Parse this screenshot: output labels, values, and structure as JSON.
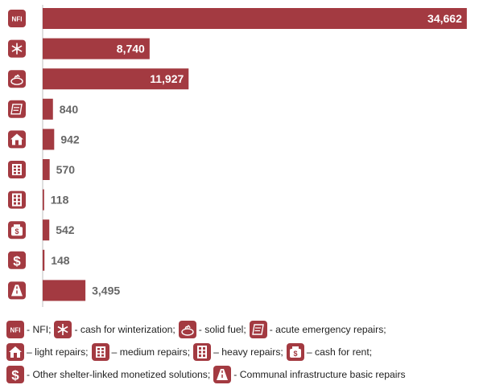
{
  "chart_data": {
    "type": "bar",
    "orientation": "horizontal",
    "categories": [
      "NFI",
      "cash for winterization",
      "solid fuel",
      "acute emergency repairs",
      "light repairs",
      "medium repairs",
      "heavy repairs",
      "cash for rent",
      "Other shelter-linked monetized solutions",
      "Communal infrastructure basic repairs"
    ],
    "icons": [
      "nfi-icon",
      "snowflake-icon",
      "fuel-icon",
      "emergency-repair-icon",
      "house-icon",
      "medium-building-icon",
      "heavy-building-icon",
      "money-bag-icon",
      "dollar-icon",
      "road-icon"
    ],
    "values": [
      34662,
      8740,
      11927,
      840,
      942,
      570,
      118,
      542,
      148,
      3495
    ],
    "value_labels": [
      "34,662",
      "8,740",
      "11,927",
      "840",
      "942",
      "570",
      "118",
      "542",
      "148",
      "3,495"
    ],
    "xlim": [
      0,
      35000
    ],
    "bar_color": "#a33a41",
    "grid": false
  },
  "icon_text": {
    "nfi": "NFI"
  },
  "legend": {
    "lines": [
      [
        {
          "icon": "nfi-icon",
          "text": "- NFI;"
        },
        {
          "icon": "snowflake-icon",
          "text": "- cash for winterization;"
        },
        {
          "icon": "fuel-icon",
          "text": "- solid fuel;"
        },
        {
          "icon": "emergency-repair-icon",
          "text": "- acute emergency repairs;"
        }
      ],
      [
        {
          "icon": "house-icon",
          "text": "– light repairs;"
        },
        {
          "icon": "medium-building-icon",
          "text": "– medium repairs;"
        },
        {
          "icon": "heavy-building-icon",
          "text": "– heavy repairs;"
        },
        {
          "icon": "money-bag-icon",
          "text": "– cash for rent;"
        }
      ],
      [
        {
          "icon": "dollar-icon",
          "text": "- Other shelter-linked monetized solutions;"
        },
        {
          "icon": "road-icon",
          "text": "- Communal infrastructure basic repairs"
        }
      ]
    ]
  }
}
